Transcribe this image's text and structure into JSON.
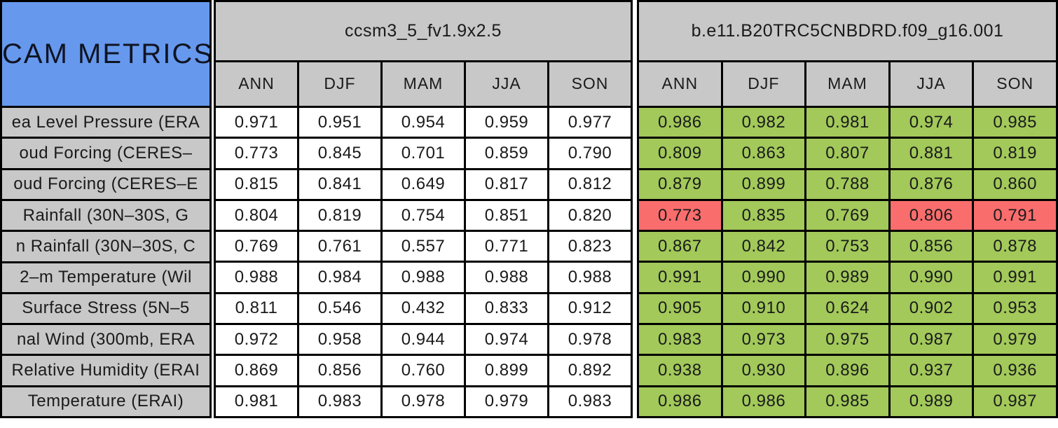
{
  "palette": {
    "blue": "#6699ee",
    "gray": "#c8c8c8",
    "green": "#a2c95a",
    "red": "#fa6d6d",
    "border": "#000000",
    "text": "#1a1a1a"
  },
  "chart_data": {
    "type": "table",
    "title": "CAM METRICS",
    "groups": [
      {
        "name": "ccsm3_5_fv1.9x2.5"
      },
      {
        "name": "b.e11.B20TRC5CNBDRD.f09_g16.001"
      }
    ],
    "seasons": [
      "ANN",
      "DJF",
      "MAM",
      "JJA",
      "SON"
    ],
    "cell_color_meaning": {
      "better": "green",
      "worse": "red"
    },
    "rows": [
      {
        "label": "ea Level Pressure (ERA",
        "model1": [
          "0.971",
          "0.951",
          "0.954",
          "0.959",
          "0.977"
        ],
        "model2": [
          "0.986",
          "0.982",
          "0.981",
          "0.974",
          "0.985"
        ],
        "model2_status": [
          "better",
          "better",
          "better",
          "better",
          "better"
        ]
      },
      {
        "label": "oud Forcing (CERES–",
        "model1": [
          "0.773",
          "0.845",
          "0.701",
          "0.859",
          "0.790"
        ],
        "model2": [
          "0.809",
          "0.863",
          "0.807",
          "0.881",
          "0.819"
        ],
        "model2_status": [
          "better",
          "better",
          "better",
          "better",
          "better"
        ]
      },
      {
        "label": "oud Forcing (CERES–E",
        "model1": [
          "0.815",
          "0.841",
          "0.649",
          "0.817",
          "0.812"
        ],
        "model2": [
          "0.879",
          "0.899",
          "0.788",
          "0.876",
          "0.860"
        ],
        "model2_status": [
          "better",
          "better",
          "better",
          "better",
          "better"
        ]
      },
      {
        "label": "Rainfall (30N–30S, G",
        "model1": [
          "0.804",
          "0.819",
          "0.754",
          "0.851",
          "0.820"
        ],
        "model2": [
          "0.773",
          "0.835",
          "0.769",
          "0.806",
          "0.791"
        ],
        "model2_status": [
          "worse",
          "better",
          "better",
          "worse",
          "worse"
        ]
      },
      {
        "label": "n Rainfall (30N–30S, C",
        "model1": [
          "0.769",
          "0.761",
          "0.557",
          "0.771",
          "0.823"
        ],
        "model2": [
          "0.867",
          "0.842",
          "0.753",
          "0.856",
          "0.878"
        ],
        "model2_status": [
          "better",
          "better",
          "better",
          "better",
          "better"
        ]
      },
      {
        "label": "2–m Temperature (Wil",
        "model1": [
          "0.988",
          "0.984",
          "0.988",
          "0.988",
          "0.988"
        ],
        "model2": [
          "0.991",
          "0.990",
          "0.989",
          "0.990",
          "0.991"
        ],
        "model2_status": [
          "better",
          "better",
          "better",
          "better",
          "better"
        ]
      },
      {
        "label": "Surface Stress (5N–5",
        "model1": [
          "0.811",
          "0.546",
          "0.432",
          "0.833",
          "0.912"
        ],
        "model2": [
          "0.905",
          "0.910",
          "0.624",
          "0.902",
          "0.953"
        ],
        "model2_status": [
          "better",
          "better",
          "better",
          "better",
          "better"
        ]
      },
      {
        "label": "nal Wind (300mb, ERA",
        "model1": [
          "0.972",
          "0.958",
          "0.944",
          "0.974",
          "0.978"
        ],
        "model2": [
          "0.983",
          "0.973",
          "0.975",
          "0.987",
          "0.979"
        ],
        "model2_status": [
          "better",
          "better",
          "better",
          "better",
          "better"
        ]
      },
      {
        "label": "Relative Humidity (ERAI",
        "model1": [
          "0.869",
          "0.856",
          "0.760",
          "0.899",
          "0.892"
        ],
        "model2": [
          "0.938",
          "0.930",
          "0.896",
          "0.937",
          "0.936"
        ],
        "model2_status": [
          "better",
          "better",
          "better",
          "better",
          "better"
        ]
      },
      {
        "label": "Temperature (ERAI)",
        "model1": [
          "0.981",
          "0.983",
          "0.978",
          "0.979",
          "0.983"
        ],
        "model2": [
          "0.986",
          "0.986",
          "0.985",
          "0.989",
          "0.987"
        ],
        "model2_status": [
          "better",
          "better",
          "better",
          "better",
          "better"
        ]
      }
    ]
  }
}
